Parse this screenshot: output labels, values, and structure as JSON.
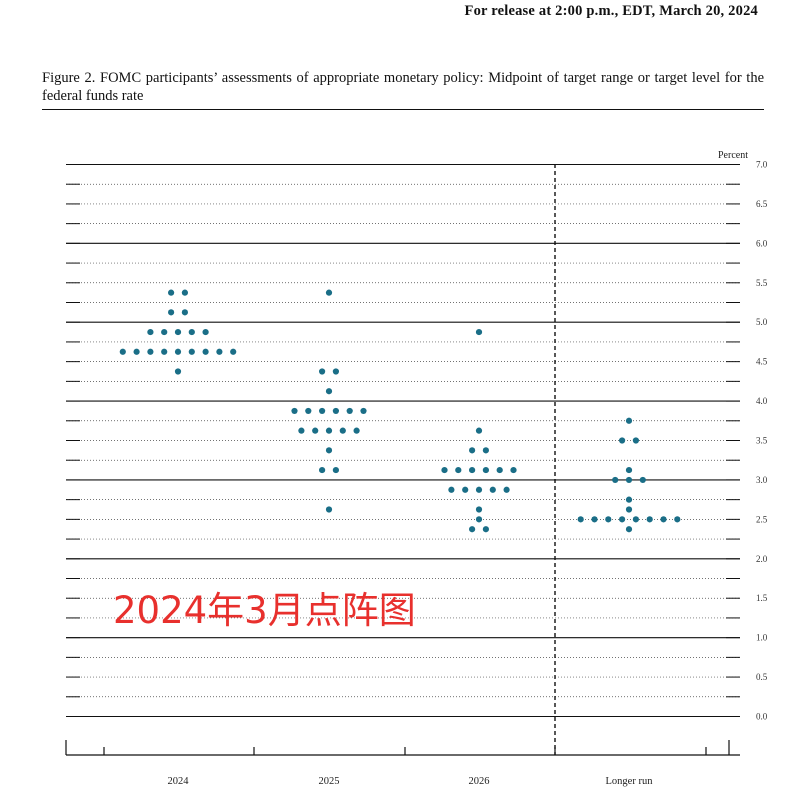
{
  "header": {
    "release": "For release at 2:00 p.m., EDT, March 20, 2024"
  },
  "figure": {
    "caption": "Figure 2.  FOMC participants’ assessments of appropriate monetary policy:  Midpoint of target range or target level for the federal funds rate"
  },
  "watermark": "2024年3月点阵图",
  "colors": {
    "dot": "#1a6e87"
  },
  "chart_data": {
    "type": "scatter",
    "ylabel": "Percent",
    "ylim": [
      0,
      7
    ],
    "yticks": [
      "0.0",
      "0.5",
      "1.0",
      "1.5",
      "2.0",
      "2.5",
      "3.0",
      "3.5",
      "4.0",
      "4.5",
      "5.0",
      "5.5",
      "6.0",
      "6.5",
      "7.0"
    ],
    "categories": [
      "2024",
      "2025",
      "2026",
      "Longer run"
    ],
    "grid": "horizontal",
    "dots": [
      {
        "category": "2024",
        "y": 5.375,
        "count": 2
      },
      {
        "category": "2024",
        "y": 5.125,
        "count": 2
      },
      {
        "category": "2024",
        "y": 4.875,
        "count": 5
      },
      {
        "category": "2024",
        "y": 4.625,
        "count": 9
      },
      {
        "category": "2024",
        "y": 4.375,
        "count": 1
      },
      {
        "category": "2025",
        "y": 5.375,
        "count": 1
      },
      {
        "category": "2025",
        "y": 4.375,
        "count": 2
      },
      {
        "category": "2025",
        "y": 4.125,
        "count": 1
      },
      {
        "category": "2025",
        "y": 3.875,
        "count": 6
      },
      {
        "category": "2025",
        "y": 3.625,
        "count": 5
      },
      {
        "category": "2025",
        "y": 3.375,
        "count": 1
      },
      {
        "category": "2025",
        "y": 3.125,
        "count": 2
      },
      {
        "category": "2025",
        "y": 2.625,
        "count": 1
      },
      {
        "category": "2026",
        "y": 4.875,
        "count": 1
      },
      {
        "category": "2026",
        "y": 3.625,
        "count": 1
      },
      {
        "category": "2026",
        "y": 3.375,
        "count": 2
      },
      {
        "category": "2026",
        "y": 3.125,
        "count": 6
      },
      {
        "category": "2026",
        "y": 2.875,
        "count": 5
      },
      {
        "category": "2026",
        "y": 2.625,
        "count": 1
      },
      {
        "category": "2026",
        "y": 2.5,
        "count": 1
      },
      {
        "category": "2026",
        "y": 2.375,
        "count": 2
      },
      {
        "category": "Longer run",
        "y": 3.75,
        "count": 1
      },
      {
        "category": "Longer run",
        "y": 3.5,
        "count": 2
      },
      {
        "category": "Longer run",
        "y": 3.125,
        "count": 1
      },
      {
        "category": "Longer run",
        "y": 3.0,
        "count": 3
      },
      {
        "category": "Longer run",
        "y": 2.75,
        "count": 1
      },
      {
        "category": "Longer run",
        "y": 2.625,
        "count": 1
      },
      {
        "category": "Longer run",
        "y": 2.5,
        "count": 8
      },
      {
        "category": "Longer run",
        "y": 2.375,
        "count": 1
      }
    ]
  }
}
